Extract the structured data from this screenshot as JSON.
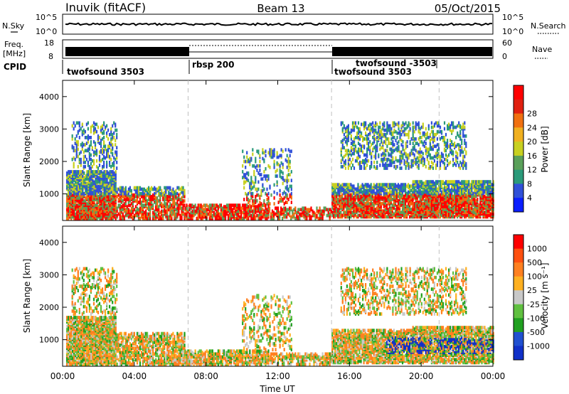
{
  "header": {
    "station": "Inuvik (fitACF)",
    "beam": "Beam 13",
    "date": "05/Oct/2015"
  },
  "noise_panel": {
    "left_label": "N.Sky",
    "right_label": "N.Search",
    "left_ticks": [
      "10^5",
      "10^0"
    ],
    "right_ticks": [
      "10^5",
      "10^0"
    ]
  },
  "freq_panel": {
    "left_label_line1": "Freq.",
    "left_label_line2": "[MHz]",
    "right_label": "Nave",
    "left_ticks": [
      "18",
      "8"
    ],
    "right_ticks": [
      "60",
      "0"
    ]
  },
  "cpid_panel": {
    "label": "CPID",
    "segments": [
      {
        "text": "twofsound 3503",
        "start_hour": 0
      },
      {
        "text": "rbsp 200",
        "start_hour": 7
      },
      {
        "text": "twofsound 3503",
        "start_hour": 15
      },
      {
        "text": "twofsound -3503",
        "start_hour": 15
      }
    ]
  },
  "chart_data": [
    {
      "type": "heatmap",
      "panel": "power",
      "ylabel": "Slant Range [km]",
      "xlabel": "",
      "yticks": [
        1000,
        2000,
        3000,
        4000
      ],
      "ylim": [
        180,
        4500
      ],
      "xlim_hours": [
        0,
        24
      ],
      "colorbar_label": "Power [dB]",
      "colorbar_ticks": [
        "4",
        "8",
        "12",
        "16",
        "20",
        "24",
        "28"
      ],
      "colorbar_colors": [
        "#0a1eff",
        "#3050d8",
        "#2a9a7a",
        "#5aa05a",
        "#c8d020",
        "#f0b020",
        "#f07010",
        "#e02010",
        "#ff0000"
      ]
    },
    {
      "type": "heatmap",
      "panel": "velocity",
      "ylabel": "Slant Range [km]",
      "xlabel": "Time UT",
      "yticks": [
        1000,
        2000,
        3000,
        4000
      ],
      "ylim": [
        180,
        4500
      ],
      "xlim_hours": [
        0,
        24
      ],
      "xtick_labels": [
        "00:00",
        "04:00",
        "08:00",
        "12:00",
        "16:00",
        "20:00",
        "00:00"
      ],
      "colorbar_label": "Velocity [m s⁻¹]",
      "colorbar_ticks": [
        "1000",
        "500",
        "100",
        "25",
        "-25",
        "-100",
        "-500",
        "-1000"
      ],
      "colorbar_colors": [
        "#1030c8",
        "#2050d0",
        "#20a020",
        "#60c040",
        "#c8c8c8",
        "#ffb020",
        "#ff8020",
        "#ff5010",
        "#ff0000"
      ]
    }
  ],
  "dashed_markers_hours": [
    7,
    15,
    21
  ]
}
